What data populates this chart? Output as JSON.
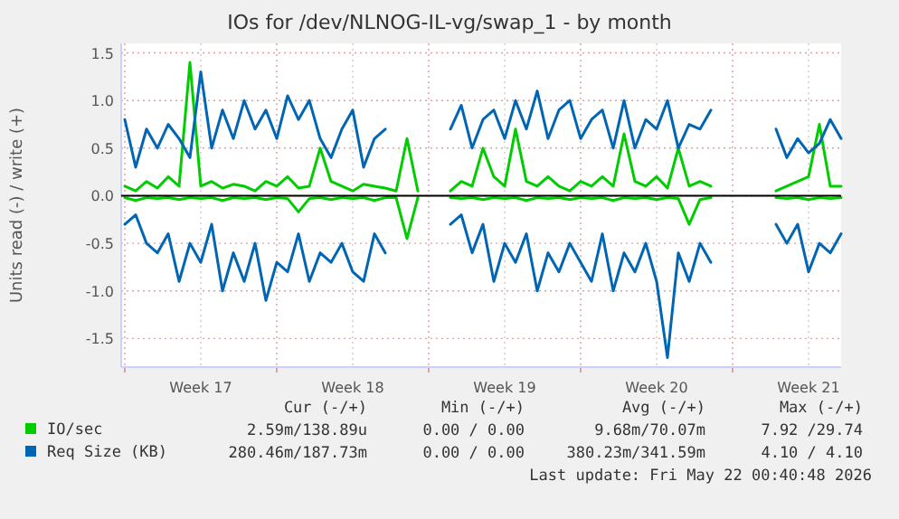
{
  "chart_data": {
    "type": "line",
    "title": "IOs for /dev/NLNOG-IL-vg/swap_1 - by month",
    "ylabel": "Units read (-) / write (+)",
    "x": [
      "2026-04-20T00:00",
      "2026-04-20T12:00",
      "2026-04-21T00:00",
      "2026-04-21T12:00",
      "2026-04-22T00:00",
      "2026-04-22T12:00",
      "2026-04-23T00:00",
      "2026-04-23T12:00",
      "2026-04-24T00:00",
      "2026-04-24T12:00",
      "2026-04-25T00:00",
      "2026-04-25T12:00",
      "2026-04-26T00:00",
      "2026-04-26T12:00",
      "2026-04-27T00:00",
      "2026-04-27T12:00",
      "2026-04-28T00:00",
      "2026-04-28T12:00",
      "2026-04-29T00:00",
      "2026-04-29T12:00",
      "2026-04-30T00:00",
      "2026-04-30T12:00",
      "2026-05-01T00:00",
      "2026-05-01T12:00",
      "2026-05-02T00:00",
      "2026-05-02T12:00",
      "2026-05-03T00:00",
      "2026-05-03T12:00",
      "2026-05-04T00:00",
      "2026-05-04T12:00",
      "2026-05-05T00:00",
      "2026-05-05T12:00",
      "2026-05-06T00:00",
      "2026-05-06T12:00",
      "2026-05-07T00:00",
      "2026-05-07T12:00",
      "2026-05-08T00:00",
      "2026-05-08T12:00",
      "2026-05-09T00:00",
      "2026-05-09T12:00",
      "2026-05-10T00:00",
      "2026-05-10T12:00",
      "2026-05-11T00:00",
      "2026-05-11T12:00",
      "2026-05-12T00:00",
      "2026-05-12T12:00",
      "2026-05-13T00:00",
      "2026-05-13T12:00",
      "2026-05-14T00:00",
      "2026-05-14T12:00",
      "2026-05-15T00:00",
      "2026-05-15T12:00",
      "2026-05-16T00:00",
      "2026-05-16T12:00",
      "2026-05-17T00:00",
      "2026-05-17T12:00",
      "2026-05-18T00:00",
      "2026-05-18T12:00",
      "2026-05-19T00:00",
      "2026-05-19T12:00",
      "2026-05-20T00:00",
      "2026-05-20T12:00",
      "2026-05-21T00:00",
      "2026-05-21T12:00",
      "2026-05-22T00:00",
      "2026-05-22T12:00",
      "2026-05-23T00:00"
    ],
    "series": [
      {
        "name": "IO/sec",
        "color": "#00cc00",
        "values": [
          0.1,
          0.05,
          0.15,
          0.08,
          0.2,
          0.1,
          1.4,
          0.1,
          0.15,
          0.08,
          0.12,
          0.1,
          0.05,
          0.15,
          0.1,
          0.2,
          0.08,
          0.1,
          0.5,
          0.15,
          0.1,
          0.05,
          0.12,
          0.1,
          0.08,
          0.05,
          0.6,
          0.05,
          null,
          null,
          0.05,
          0.15,
          0.1,
          0.5,
          0.2,
          0.1,
          0.7,
          0.15,
          0.1,
          0.2,
          0.1,
          0.05,
          0.15,
          0.1,
          0.2,
          0.1,
          0.65,
          0.15,
          0.1,
          0.2,
          0.08,
          0.5,
          0.1,
          0.15,
          0.1,
          null,
          null,
          null,
          null,
          null,
          0.05,
          0.1,
          0.15,
          0.2,
          0.75,
          0.1,
          0.1
        ]
      },
      {
        "color": "#00cc00",
        "values": [
          -0.02,
          -0.05,
          -0.02,
          -0.03,
          -0.02,
          -0.04,
          -0.02,
          -0.03,
          -0.02,
          -0.05,
          -0.02,
          -0.03,
          -0.02,
          -0.04,
          -0.02,
          -0.03,
          -0.17,
          -0.03,
          -0.02,
          -0.04,
          -0.02,
          -0.03,
          -0.02,
          -0.05,
          -0.02,
          -0.02,
          -0.45,
          -0.02,
          null,
          null,
          -0.02,
          -0.03,
          -0.02,
          -0.04,
          -0.02,
          -0.03,
          -0.02,
          -0.05,
          -0.02,
          -0.03,
          -0.02,
          -0.04,
          -0.02,
          -0.03,
          -0.02,
          -0.05,
          -0.02,
          -0.03,
          -0.02,
          -0.04,
          -0.02,
          -0.03,
          -0.3,
          -0.04,
          -0.02,
          null,
          null,
          null,
          null,
          null,
          -0.02,
          -0.03,
          -0.02,
          -0.04,
          -0.02,
          -0.03,
          -0.02
        ]
      },
      {
        "name": "Req Size (KB)",
        "color": "#0066b3",
        "values": [
          0.8,
          0.3,
          0.7,
          0.5,
          0.75,
          0.6,
          0.4,
          1.3,
          0.5,
          0.9,
          0.6,
          1.0,
          0.7,
          0.9,
          0.6,
          1.05,
          0.8,
          1.0,
          0.6,
          0.4,
          0.7,
          0.9,
          0.3,
          0.6,
          0.7,
          null,
          null,
          null,
          null,
          null,
          0.7,
          0.95,
          0.5,
          0.8,
          0.9,
          0.6,
          1.0,
          0.7,
          1.1,
          0.6,
          0.9,
          1.0,
          0.6,
          0.8,
          0.9,
          0.5,
          1.0,
          0.5,
          0.8,
          0.7,
          1.0,
          0.5,
          0.75,
          0.7,
          0.9,
          null,
          null,
          null,
          null,
          null,
          0.7,
          0.4,
          0.6,
          0.45,
          0.55,
          0.8,
          0.6
        ]
      },
      {
        "color": "#0066b3",
        "values": [
          -0.3,
          -0.2,
          -0.5,
          -0.6,
          -0.4,
          -0.9,
          -0.5,
          -0.7,
          -0.3,
          -1.0,
          -0.6,
          -0.9,
          -0.5,
          -1.1,
          -0.7,
          -0.8,
          -0.4,
          -0.9,
          -0.6,
          -0.7,
          -0.5,
          -0.8,
          -0.9,
          -0.4,
          -0.6,
          null,
          null,
          null,
          null,
          null,
          -0.3,
          -0.2,
          -0.6,
          -0.3,
          -0.9,
          -0.5,
          -0.7,
          -0.4,
          -1.0,
          -0.6,
          -0.8,
          -0.5,
          -0.7,
          -0.9,
          -0.4,
          -1.0,
          -0.6,
          -0.8,
          -0.5,
          -0.9,
          -1.7,
          -0.6,
          -0.9,
          -0.5,
          -0.7,
          null,
          null,
          null,
          null,
          null,
          -0.3,
          -0.5,
          -0.3,
          -0.8,
          -0.5,
          -0.6,
          -0.4
        ]
      }
    ],
    "xlim": [
      "2026-04-19T20:00",
      "2026-05-23T00:00"
    ],
    "xticks": [
      {
        "value": "2026-04-20T00:00",
        "label": null
      },
      {
        "value": "2026-04-23T12:00",
        "label": "Week 17"
      },
      {
        "value": "2026-04-27T00:00",
        "label": null
      },
      {
        "value": "2026-04-30T12:00",
        "label": "Week 18"
      },
      {
        "value": "2026-05-04T00:00",
        "label": null
      },
      {
        "value": "2026-05-07T12:00",
        "label": "Week 19"
      },
      {
        "value": "2026-05-11T00:00",
        "label": null
      },
      {
        "value": "2026-05-14T12:00",
        "label": "Week 20"
      },
      {
        "value": "2026-05-18T00:00",
        "label": null
      },
      {
        "value": "2026-05-21T12:00",
        "label": "Week 21"
      }
    ],
    "ylim": [
      -1.8,
      1.6
    ],
    "yticks": [
      {
        "value": -1.5,
        "label": "-1.5"
      },
      {
        "value": -1,
        "label": "-1.0"
      },
      {
        "value": -0.5,
        "label": "-0.5"
      },
      {
        "value": 0,
        "label": "0.0"
      },
      {
        "value": 0.5,
        "label": "0.5"
      },
      {
        "value": 1,
        "label": "1.0"
      },
      {
        "value": 1.5,
        "label": "1.5"
      }
    ],
    "grid": true,
    "legend": "bottom",
    "annotations": [
      "Cur (-/+)",
      "Min (-/+)",
      "Avg (-/+)",
      "Max (-/+)",
      "2.59m/138.89u",
      "0.00 / 0.00",
      "9.68m/70.07m",
      "7.92 /29.74",
      "280.46m/187.73m",
      "0.00 / 0.00",
      "380.23m/341.59m",
      "4.10 / 4.10",
      "Last update: Fri May 22 00:40:48 2026"
    ]
  }
}
